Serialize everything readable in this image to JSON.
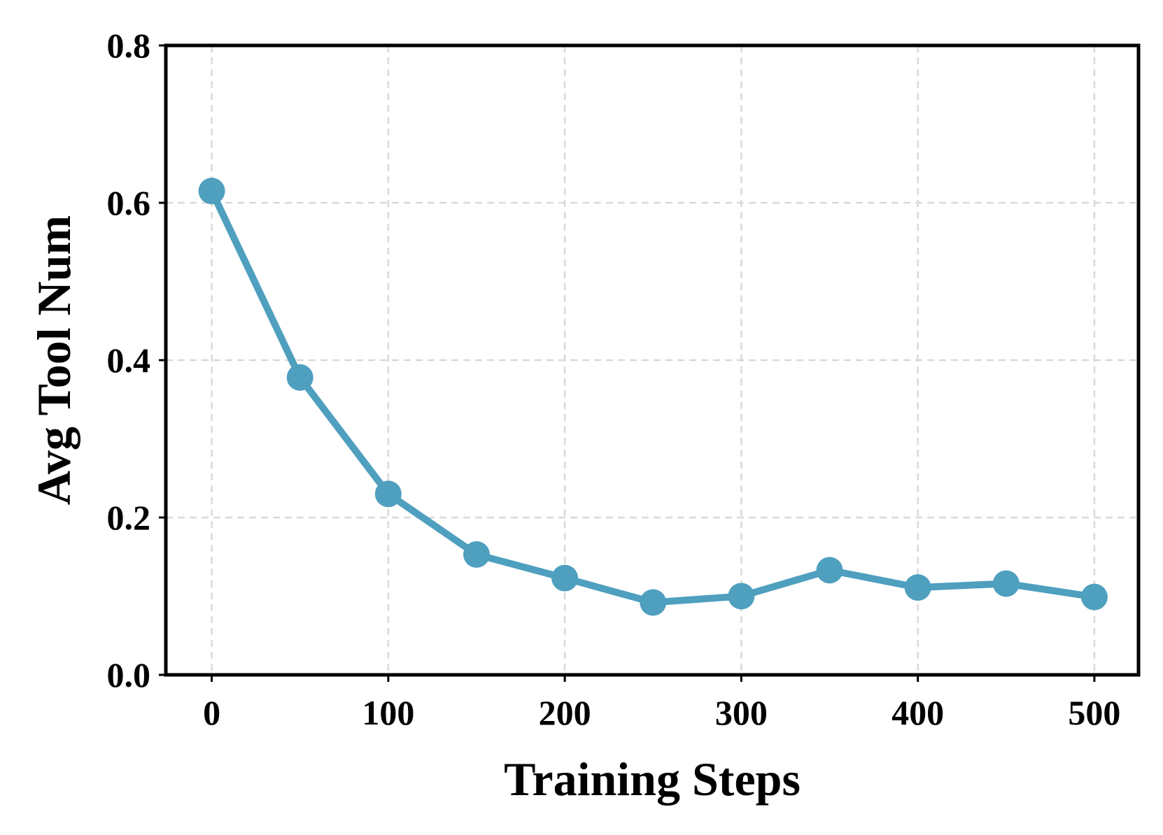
{
  "chart_data": {
    "type": "line",
    "title": "",
    "xlabel": "Training Steps",
    "ylabel": "Avg Tool Num",
    "xlim": [
      -26,
      525
    ],
    "ylim": [
      0.0,
      0.8
    ],
    "x_ticks": [
      0,
      100,
      200,
      300,
      400,
      500
    ],
    "x_tick_labels": [
      "0",
      "100",
      "200",
      "300",
      "400",
      "500"
    ],
    "y_ticks": [
      0.0,
      0.2,
      0.4,
      0.6,
      0.8
    ],
    "y_tick_labels": [
      "0.0",
      "0.2",
      "0.4",
      "0.6",
      "0.8"
    ],
    "grid": true,
    "legend": "none",
    "line_color": "#4f9fbf",
    "series": [
      {
        "x": [
          0,
          50,
          100,
          150,
          200,
          250,
          300,
          350,
          400,
          450,
          500
        ],
        "values": [
          0.615,
          0.378,
          0.23,
          0.153,
          0.123,
          0.092,
          0.1,
          0.133,
          0.111,
          0.116,
          0.099
        ]
      }
    ]
  }
}
